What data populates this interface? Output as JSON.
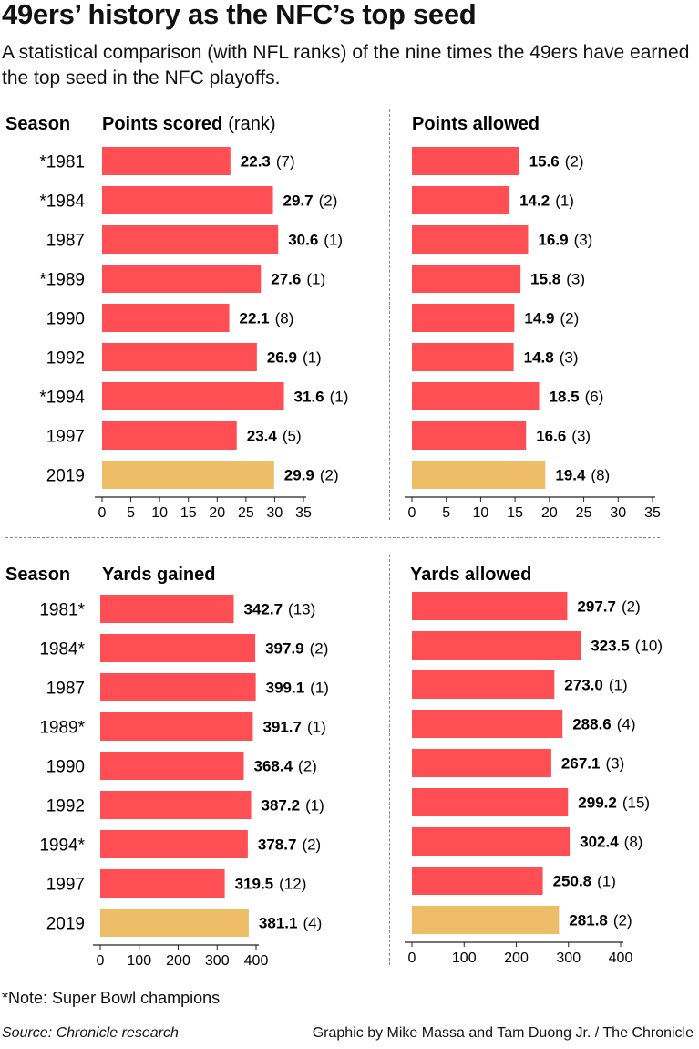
{
  "title": "49ers’ history as the NFC’s top seed",
  "subtitle": "A statistical comparison (with NFL ranks) of the nine times the 49ers have earned the top seed in the NFC playoffs.",
  "season_header": "Season",
  "colors": {
    "bar": "#ff4f55",
    "highlight": "#eebd67",
    "axis": "#222222",
    "divider": "#888888"
  },
  "chart_data": [
    {
      "type": "bar",
      "orientation": "horizontal",
      "title": "Points scored",
      "title_suffix": "(rank)",
      "categories": [
        "*1981",
        "*1984",
        "1987",
        "*1989",
        "1990",
        "1992",
        "*1994",
        "1997",
        "2019"
      ],
      "values": [
        22.3,
        29.7,
        30.6,
        27.6,
        22.1,
        26.9,
        31.6,
        23.4,
        29.9
      ],
      "value_labels": [
        "22.3",
        "29.7",
        "30.6",
        "27.6",
        "22.1",
        "26.9",
        "31.6",
        "23.4",
        "29.9"
      ],
      "ranks": [
        "(7)",
        "(2)",
        "(1)",
        "(1)",
        "(8)",
        "(1)",
        "(1)",
        "(5)",
        "(2)"
      ],
      "highlight_index": 8,
      "xlim": [
        0,
        35
      ],
      "xticks": [
        0,
        5,
        10,
        15,
        20,
        25,
        30,
        35
      ]
    },
    {
      "type": "bar",
      "orientation": "horizontal",
      "title": "Points allowed",
      "title_suffix": "",
      "categories": [
        "*1981",
        "*1984",
        "1987",
        "*1989",
        "1990",
        "1992",
        "*1994",
        "1997",
        "2019"
      ],
      "values": [
        15.6,
        14.2,
        16.9,
        15.8,
        14.9,
        14.8,
        18.5,
        16.6,
        19.4
      ],
      "value_labels": [
        "15.6",
        "14.2",
        "16.9",
        "15.8",
        "14.9",
        "14.8",
        "18.5",
        "16.6",
        "19.4"
      ],
      "ranks": [
        "(2)",
        "(1)",
        "(3)",
        "(3)",
        "(2)",
        "(3)",
        "(6)",
        "(3)",
        "(8)"
      ],
      "highlight_index": 8,
      "xlim": [
        0,
        35
      ],
      "xticks": [
        0,
        5,
        10,
        15,
        20,
        25,
        30,
        35
      ]
    },
    {
      "type": "bar",
      "orientation": "horizontal",
      "title": "Yards gained",
      "title_suffix": "",
      "categories": [
        "1981*",
        "1984*",
        "1987",
        "1989*",
        "1990",
        "1992",
        "1994*",
        "1997",
        "2019"
      ],
      "values": [
        342.7,
        397.9,
        399.1,
        391.7,
        368.4,
        387.2,
        378.7,
        319.5,
        381.1
      ],
      "value_labels": [
        "342.7",
        "397.9",
        "399.1",
        "391.7",
        "368.4",
        "387.2",
        "378.7",
        "319.5",
        "381.1"
      ],
      "ranks": [
        "(13)",
        "(2)",
        "(1)",
        "(1)",
        "(2)",
        "(1)",
        "(2)",
        "(12)",
        "(4)"
      ],
      "highlight_index": 8,
      "xlim": [
        0,
        400
      ],
      "xticks": [
        0,
        100,
        200,
        300,
        400
      ]
    },
    {
      "type": "bar",
      "orientation": "horizontal",
      "title": "Yards allowed",
      "title_suffix": "",
      "categories": [
        "1981*",
        "1984*",
        "1987",
        "1989*",
        "1990",
        "1992",
        "1994*",
        "1997",
        "2019"
      ],
      "values": [
        297.7,
        323.5,
        273.0,
        288.6,
        267.1,
        299.2,
        302.4,
        250.8,
        281.8
      ],
      "value_labels": [
        "297.7",
        "323.5",
        "273.0",
        "288.6",
        "267.1",
        "299.2",
        "302.4",
        "250.8",
        "281.8"
      ],
      "ranks": [
        "(2)",
        "(10)",
        "(1)",
        "(4)",
        "(3)",
        "(15)",
        "(8)",
        "(1)",
        "(2)"
      ],
      "highlight_index": 8,
      "xlim": [
        0,
        400
      ],
      "xticks": [
        0,
        100,
        200,
        300,
        400
      ]
    }
  ],
  "note": "*Note: Super Bowl champions",
  "source": "Source: Chronicle research",
  "credit": "Graphic by Mike Massa and Tam Duong Jr. / The Chronicle"
}
